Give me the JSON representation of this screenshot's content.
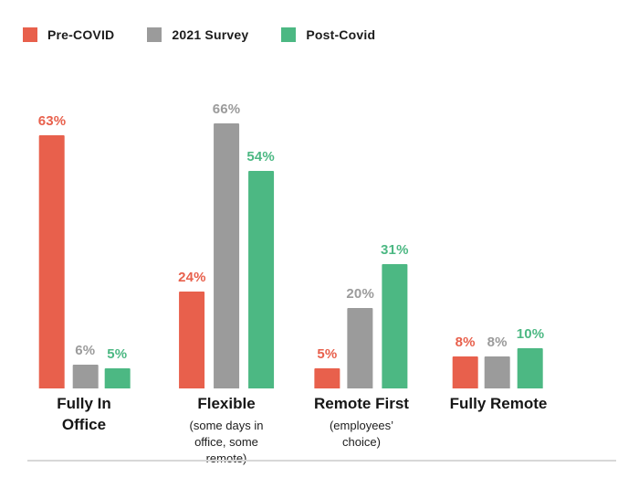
{
  "legend": {
    "items": [
      "Pre-COVID",
      "2021 Survey",
      "Post-Covid"
    ]
  },
  "chart_data": {
    "type": "bar",
    "title": "",
    "unit": "%",
    "categories": [
      "Fully In\nOffice",
      "Flexible",
      "Remote First",
      "Fully Remote"
    ],
    "category_notes": [
      "",
      "(some days in\noffice, some\nremote)",
      "(employees’\nchoice)",
      ""
    ],
    "series": [
      {
        "name": "Pre-COVID",
        "color": "#e8604c",
        "values": [
          63,
          24,
          5,
          8
        ]
      },
      {
        "name": "2021 Survey",
        "color": "#9b9b9b",
        "values": [
          6,
          66,
          20,
          8
        ]
      },
      {
        "name": "Post-Covid",
        "color": "#4cb883",
        "values": [
          5,
          54,
          31,
          10
        ]
      }
    ],
    "ylim": [
      0,
      70
    ],
    "grid": false,
    "legend_position": "top-left",
    "value_labels": "above bars, colored to match series"
  }
}
